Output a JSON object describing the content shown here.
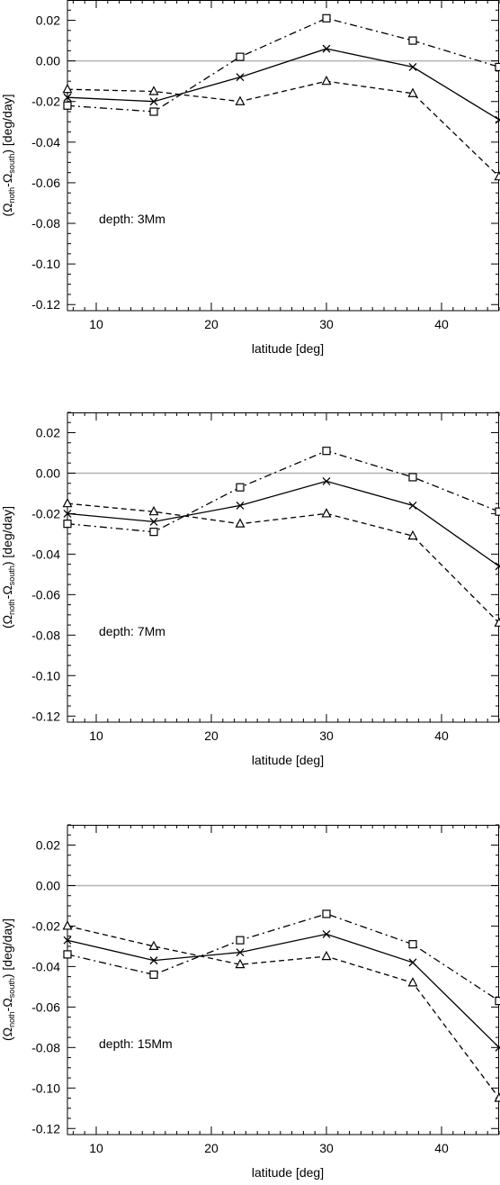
{
  "chart_data": [
    {
      "type": "line",
      "annotation": "depth: 3Mm",
      "xlabel": "latitude [deg]",
      "ylabel": {
        "prefix": "(Ω",
        "sub1": "noth",
        "mid": "-Ω",
        "sub2": "south",
        "suffix": ") [deg/day]"
      },
      "xlim": [
        7.5,
        45
      ],
      "ylim": [
        -0.123,
        0.03
      ],
      "xticks": [
        10,
        20,
        30,
        40
      ],
      "yticks": [
        0.02,
        0.0,
        -0.02,
        -0.04,
        -0.06,
        -0.08,
        -0.1,
        -0.12
      ],
      "ytick_labels": [
        "0.02",
        "0.00",
        "-0.02",
        "-0.04",
        "-0.06",
        "-0.08",
        "-0.10",
        "-0.12"
      ],
      "x": [
        7.5,
        15,
        22.5,
        30,
        37.5,
        45
      ],
      "zero_line": 0,
      "series": [
        {
          "style": "solid",
          "marker": "x",
          "values": [
            -0.018,
            -0.02,
            -0.008,
            0.006,
            -0.003,
            -0.029
          ]
        },
        {
          "style": "dashdot",
          "marker": "square",
          "values": [
            -0.022,
            -0.025,
            0.002,
            0.021,
            0.01,
            -0.003
          ]
        },
        {
          "style": "dashed",
          "marker": "triangle",
          "values": [
            -0.014,
            -0.015,
            -0.02,
            -0.01,
            -0.016,
            -0.057
          ]
        }
      ]
    },
    {
      "type": "line",
      "annotation": "depth: 7Mm",
      "xlabel": "latitude [deg]",
      "ylabel": {
        "prefix": "(Ω",
        "sub1": "noth",
        "mid": "-Ω",
        "sub2": "south",
        "suffix": ") [deg/day]"
      },
      "xlim": [
        7.5,
        45
      ],
      "ylim": [
        -0.123,
        0.03
      ],
      "xticks": [
        10,
        20,
        30,
        40
      ],
      "yticks": [
        0.02,
        0.0,
        -0.02,
        -0.04,
        -0.06,
        -0.08,
        -0.1,
        -0.12
      ],
      "ytick_labels": [
        "0.02",
        "0.00",
        "-0.02",
        "-0.04",
        "-0.06",
        "-0.08",
        "-0.10",
        "-0.12"
      ],
      "x": [
        7.5,
        15,
        22.5,
        30,
        37.5,
        45
      ],
      "zero_line": 0,
      "series": [
        {
          "style": "solid",
          "marker": "x",
          "values": [
            -0.02,
            -0.024,
            -0.016,
            -0.004,
            -0.016,
            -0.046
          ]
        },
        {
          "style": "dashdot",
          "marker": "square",
          "values": [
            -0.025,
            -0.029,
            -0.007,
            0.011,
            -0.002,
            -0.019
          ]
        },
        {
          "style": "dashed",
          "marker": "triangle",
          "values": [
            -0.015,
            -0.019,
            -0.025,
            -0.02,
            -0.031,
            -0.074
          ]
        }
      ]
    },
    {
      "type": "line",
      "annotation": "depth: 15Mm",
      "xlabel": "latitude [deg]",
      "ylabel": {
        "prefix": "(Ω",
        "sub1": "noth",
        "mid": "-Ω",
        "sub2": "south",
        "suffix": ") [deg/day]"
      },
      "xlim": [
        7.5,
        45
      ],
      "ylim": [
        -0.123,
        0.03
      ],
      "xticks": [
        10,
        20,
        30,
        40
      ],
      "yticks": [
        0.02,
        0.0,
        -0.02,
        -0.04,
        -0.06,
        -0.08,
        -0.1,
        -0.12
      ],
      "ytick_labels": [
        "0.02",
        "0.00",
        "-0.02",
        "-0.04",
        "-0.06",
        "-0.08",
        "-0.10",
        "-0.12"
      ],
      "x": [
        7.5,
        15,
        22.5,
        30,
        37.5,
        45
      ],
      "zero_line": 0,
      "series": [
        {
          "style": "solid",
          "marker": "x",
          "values": [
            -0.027,
            -0.037,
            -0.033,
            -0.024,
            -0.038,
            -0.08
          ]
        },
        {
          "style": "dashdot",
          "marker": "square",
          "values": [
            -0.034,
            -0.044,
            -0.027,
            -0.014,
            -0.029,
            -0.057
          ]
        },
        {
          "style": "dashed",
          "marker": "triangle",
          "values": [
            -0.02,
            -0.03,
            -0.039,
            -0.035,
            -0.048,
            -0.105
          ]
        }
      ]
    }
  ],
  "colors": {
    "axes": "#000000",
    "zero_line": "#b3b3b3",
    "series": "#000000"
  }
}
